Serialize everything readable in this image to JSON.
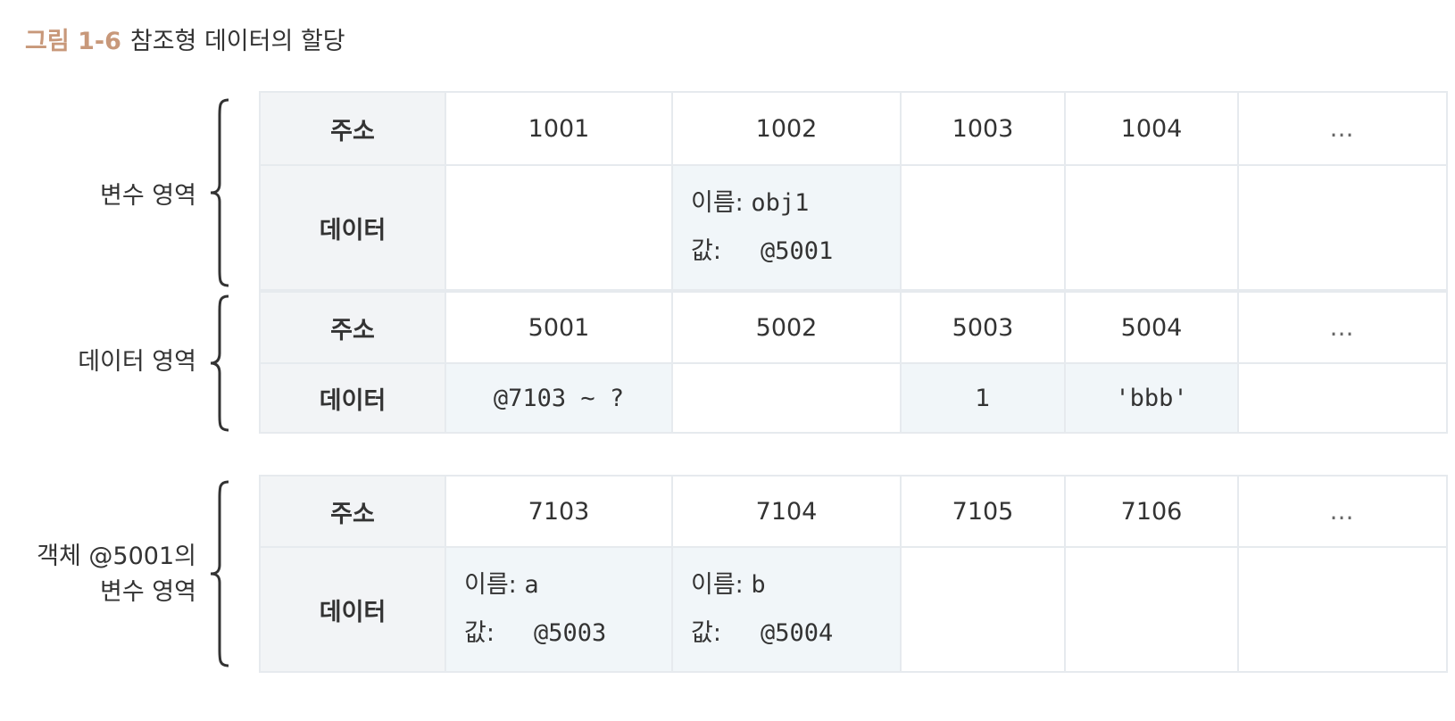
{
  "figure": {
    "number": "그림 1-6",
    "title": "참조형 데이터의 할당"
  },
  "row_labels": {
    "address": "주소",
    "data": "데이터"
  },
  "sections": [
    {
      "label_lines": [
        "변수 영역"
      ],
      "addresses": [
        "1001",
        "1002",
        "1003",
        "1004",
        "…"
      ],
      "cells": [
        null,
        {
          "name_key": "이름:",
          "name_value": "obj1",
          "value_key": "값:",
          "value_value": "@5001"
        },
        null,
        null,
        null
      ]
    },
    {
      "label_lines": [
        "데이터 영역"
      ],
      "addresses": [
        "5001",
        "5002",
        "5003",
        "5004",
        "…"
      ],
      "cells": [
        "@7103 ~ ?",
        null,
        "1",
        "'bbb'",
        null
      ]
    },
    {
      "label_lines": [
        "객체 @5001의",
        "변수 영역"
      ],
      "addresses": [
        "7103",
        "7104",
        "7105",
        "7106",
        "…"
      ],
      "cells": [
        {
          "name_key": "이름:",
          "name_value": "a",
          "value_key": "값:",
          "value_value": "@5003"
        },
        {
          "name_key": "이름:",
          "name_value": "b",
          "value_key": "값:",
          "value_value": "@5004"
        },
        null,
        null,
        null
      ]
    }
  ],
  "colors": {
    "caption_accent": "#c8987a",
    "header_fill": "#f2f4f6",
    "cell_fill": "#f1f6f9",
    "border": "#e6eaee",
    "brace": "#333333"
  }
}
